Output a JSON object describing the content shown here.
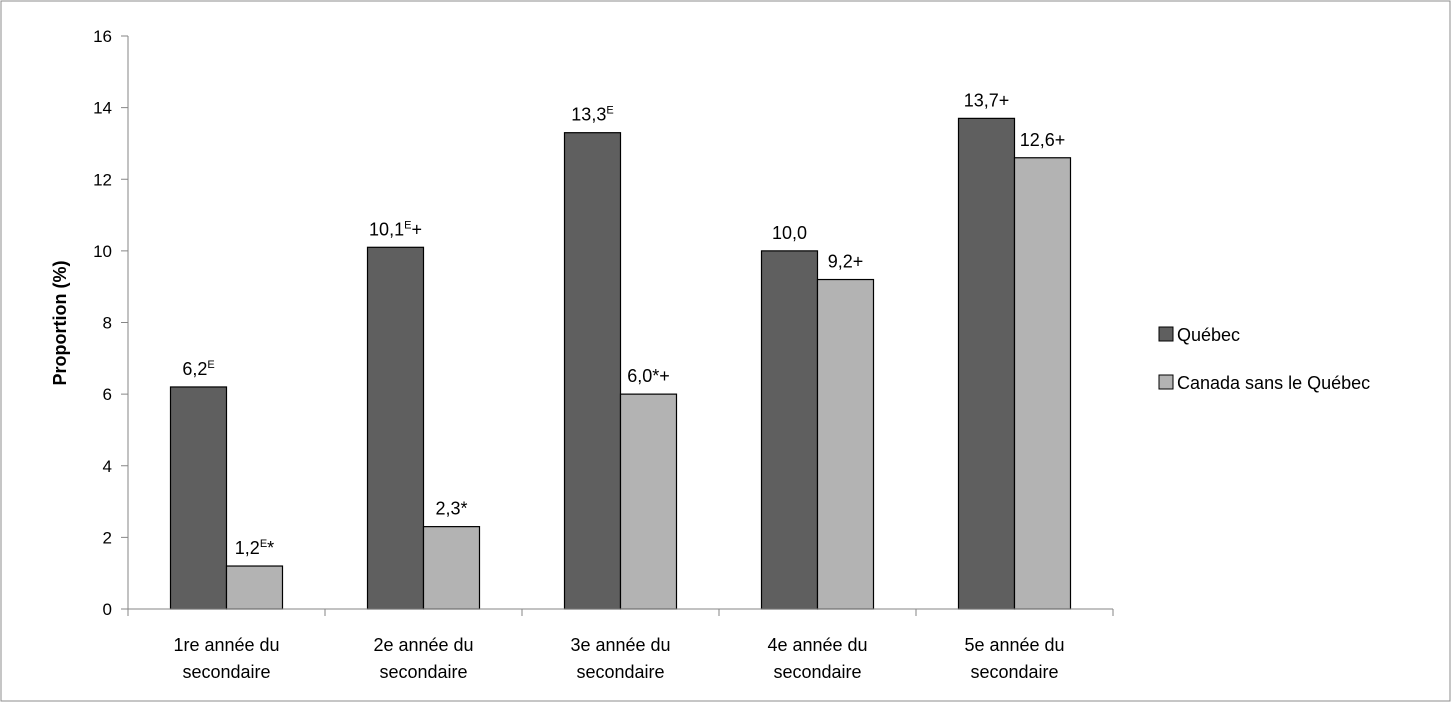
{
  "chart_data": {
    "type": "bar",
    "title": "",
    "xlabel": "",
    "ylabel": "Proportion (%)",
    "ylim": [
      0,
      16
    ],
    "yticks": [
      "0",
      "2",
      "4",
      "6",
      "8",
      "10",
      "12",
      "14",
      "16"
    ],
    "categories": [
      [
        "1re année du",
        "secondaire"
      ],
      [
        "2e année du",
        "secondaire"
      ],
      [
        "3e année du",
        "secondaire"
      ],
      [
        "4e année du",
        "secondaire"
      ],
      [
        "5e année du",
        "secondaire"
      ]
    ],
    "legend_position": "right",
    "series": [
      {
        "name": "Québec",
        "color": "#5f5f5f",
        "values": [
          6.2,
          10.1,
          13.3,
          10.0,
          13.7
        ],
        "labels": [
          {
            "text": "6,2",
            "sup": "E",
            "suffix": ""
          },
          {
            "text": "10,1",
            "sup": "E",
            "suffix": "+"
          },
          {
            "text": "13,3",
            "sup": "E",
            "suffix": ""
          },
          {
            "text": "10,0",
            "sup": "",
            "suffix": ""
          },
          {
            "text": "13,7+",
            "sup": "",
            "suffix": ""
          }
        ]
      },
      {
        "name": "Canada sans le Québec",
        "color": "#b3b3b3",
        "values": [
          1.2,
          2.3,
          6.0,
          9.2,
          12.6
        ],
        "labels": [
          {
            "text": "1,2",
            "sup": "E",
            "suffix": "*"
          },
          {
            "text": "2,3*",
            "sup": "",
            "suffix": ""
          },
          {
            "text": "6,0*+",
            "sup": "",
            "suffix": ""
          },
          {
            "text": "9,2+",
            "sup": "",
            "suffix": ""
          },
          {
            "text": "12,6+",
            "sup": "",
            "suffix": ""
          }
        ]
      }
    ]
  }
}
